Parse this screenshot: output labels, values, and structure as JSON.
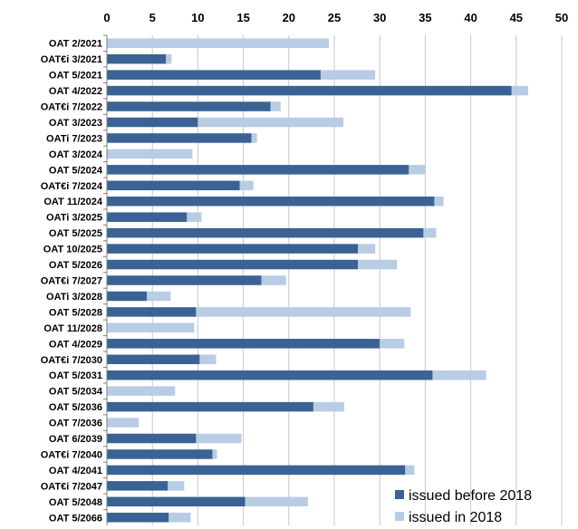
{
  "chart_data": {
    "type": "bar",
    "orientation": "horizontal",
    "stacked": true,
    "title": "",
    "xlabel": "",
    "ylabel": "",
    "xlim": [
      0,
      50
    ],
    "x_ticks": [
      0,
      5,
      10,
      15,
      20,
      25,
      30,
      35,
      40,
      45,
      50
    ],
    "x_axis_position": "top",
    "grid": true,
    "legend_position": "bottom-right",
    "categories": [
      "OAT 2/2021",
      "OAT€i 3/2021",
      "OAT 5/2021",
      "OAT 4/2022",
      "OAT€i 7/2022",
      "OAT 3/2023",
      "OATi 7/2023",
      "OAT 3/2024",
      "OAT 5/2024",
      "OAT€i 7/2024",
      "OAT 11/2024",
      "OATi 3/2025",
      "OAT 5/2025",
      "OAT 10/2025",
      "OAT 5/2026",
      "OAT€i 7/2027",
      "OATi 3/2028",
      "OAT 5/2028",
      "OAT 11/2028",
      "OAT 4/2029",
      "OAT€i 7/2030",
      "OAT 5/2031",
      "OAT 5/2034",
      "OAT 5/2036",
      "OAT 7/2036",
      "OAT 6/2039",
      "OAT€i 7/2040",
      "OAT 4/2041",
      "OAT€i 7/2047",
      "OAT 5/2048",
      "OAT 5/2066"
    ],
    "series": [
      {
        "name": "issued before 2018",
        "color": "#3a6294",
        "values": [
          0,
          6.5,
          23.5,
          44.5,
          18.0,
          10.0,
          15.9,
          0,
          33.2,
          14.6,
          36.0,
          8.8,
          34.8,
          27.6,
          27.6,
          17.0,
          4.4,
          9.8,
          0,
          30.0,
          10.2,
          35.8,
          0,
          22.7,
          0,
          9.8,
          11.6,
          32.8,
          6.7,
          15.2,
          6.8
        ]
      },
      {
        "name": "issued in 2018",
        "color": "#b8cce4",
        "values": [
          24.4,
          0.6,
          6.0,
          1.8,
          1.1,
          16.0,
          0.6,
          9.4,
          1.8,
          1.5,
          1.0,
          1.6,
          1.4,
          1.9,
          4.3,
          2.7,
          2.6,
          23.6,
          9.6,
          2.7,
          1.8,
          5.9,
          7.5,
          3.4,
          3.5,
          5.0,
          0.5,
          1.0,
          1.8,
          6.9,
          2.4
        ]
      }
    ]
  }
}
